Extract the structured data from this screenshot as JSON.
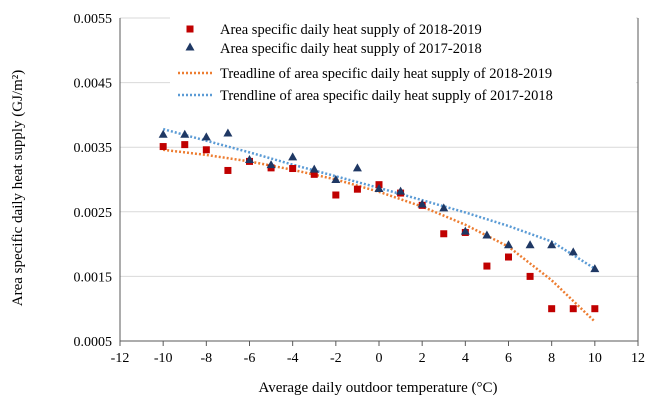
{
  "chart_data": {
    "type": "scatter",
    "xlabel": "Average daily outdoor temperature (°C)",
    "ylabel": "Area specific daily heat supply (GJ/m²)",
    "xlim": [
      -12,
      12
    ],
    "ylim": [
      0.0005,
      0.0055
    ],
    "xticks": [
      "-12",
      "-10",
      "-8",
      "-6",
      "-4",
      "-2",
      "0",
      "2",
      "4",
      "6",
      "8",
      "10",
      "12"
    ],
    "yticks": [
      "0.0005",
      "0.0015",
      "0.0025",
      "0.0035",
      "0.0045",
      "0.0055"
    ],
    "grid": "horizontal",
    "legend_position": "top-right",
    "series": [
      {
        "name": "Area specific daily heat supply of 2018-2019",
        "marker": "square",
        "color": "#c00000",
        "x": [
          -10,
          -9,
          -8,
          -7,
          -6,
          -5,
          -4,
          -3,
          -2,
          -1,
          0,
          1,
          2,
          3,
          4,
          5,
          6,
          7,
          8,
          9,
          10
        ],
        "y": [
          0.00351,
          0.00354,
          0.00346,
          0.00314,
          0.00328,
          0.00318,
          0.00317,
          0.00308,
          0.00276,
          0.00285,
          0.00292,
          0.00279,
          0.0026,
          0.00216,
          0.00218,
          0.00166,
          0.0018,
          0.0015,
          0.001,
          0.001,
          0.001
        ]
      },
      {
        "name": "Area specific daily heat supply of 2017-2018",
        "marker": "triangle",
        "color": "#1f3864",
        "x": [
          -10,
          -9,
          -8,
          -7,
          -6,
          -5,
          -4,
          -3,
          -2,
          -1,
          0,
          1,
          2,
          3,
          4,
          5,
          6,
          7,
          8,
          9,
          10
        ],
        "y": [
          0.0037,
          0.0037,
          0.00366,
          0.00372,
          0.00331,
          0.00323,
          0.00335,
          0.00316,
          0.003,
          0.00318,
          0.00286,
          0.00282,
          0.00262,
          0.00256,
          0.0022,
          0.00214,
          0.00199,
          0.00199,
          0.00199,
          0.00188,
          0.00162
        ]
      },
      {
        "name": "Treadline of area specific daily heat supply of 2018-2019",
        "line": "dotted",
        "color": "#ed7d31",
        "x": [
          -10,
          -8,
          -6,
          -4,
          -2,
          0,
          2,
          4,
          6,
          8,
          10
        ],
        "y": [
          0.00346,
          0.00338,
          0.00328,
          0.00315,
          0.003,
          0.00281,
          0.00258,
          0.0023,
          0.00196,
          0.00144,
          0.0008
        ]
      },
      {
        "name": "Trendline of area specific daily heat supply of 2017-2018",
        "line": "dotted",
        "color": "#5b9bd5",
        "x": [
          -10,
          -8,
          -6,
          -4,
          -2,
          0,
          2,
          4,
          6,
          8,
          10
        ],
        "y": [
          0.00378,
          0.0036,
          0.00342,
          0.00323,
          0.00305,
          0.00287,
          0.00268,
          0.00249,
          0.00228,
          0.00204,
          0.00162
        ]
      }
    ]
  }
}
